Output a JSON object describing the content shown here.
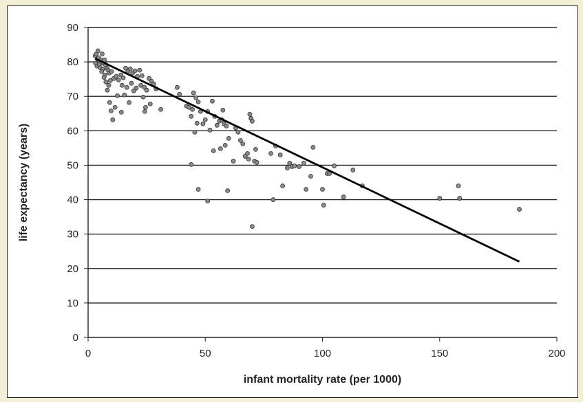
{
  "chart_data": {
    "type": "scatter",
    "title": "",
    "xlabel": "infant mortality rate (per 1000)",
    "ylabel": "life expectancy (years)",
    "xlim": [
      0,
      200
    ],
    "ylim": [
      0,
      90
    ],
    "x_ticks": [
      "0",
      "50",
      "100",
      "150",
      "200"
    ],
    "y_ticks": [
      "0",
      "10",
      "20",
      "30",
      "40",
      "50",
      "60",
      "70",
      "80",
      "90"
    ],
    "grid": "horizontal",
    "legend": "none",
    "trendline": {
      "x": [
        3,
        184
      ],
      "y": [
        81,
        22
      ]
    },
    "series": [
      {
        "values": [
          [
            3,
            81.8
          ],
          [
            3.5,
            82.3
          ],
          [
            4,
            80.8
          ],
          [
            3.2,
            79.6
          ],
          [
            4.5,
            81.2
          ],
          [
            5,
            80.2
          ],
          [
            5.5,
            80.6
          ],
          [
            4.2,
            83.2
          ],
          [
            6,
            82.3
          ],
          [
            3.8,
            78.8
          ],
          [
            4.8,
            79.2
          ],
          [
            5.2,
            78.3
          ],
          [
            6.5,
            79.6
          ],
          [
            7,
            80.6
          ],
          [
            6.2,
            77.8
          ],
          [
            5.8,
            77.2
          ],
          [
            7.5,
            79.0
          ],
          [
            8,
            78.2
          ],
          [
            8.5,
            77.6
          ],
          [
            7.2,
            76.2
          ],
          [
            9,
            76.8
          ],
          [
            6.8,
            75.5
          ],
          [
            10,
            77.2
          ],
          [
            9.5,
            74.6
          ],
          [
            8.8,
            73.2
          ],
          [
            8.2,
            71.8
          ],
          [
            7.6,
            74.2
          ],
          [
            11,
            75.2
          ],
          [
            12,
            75.8
          ],
          [
            13,
            74.8
          ],
          [
            14,
            76.2
          ],
          [
            15,
            75.4
          ],
          [
            16,
            78.2
          ],
          [
            17,
            77.2
          ],
          [
            18,
            78.0
          ],
          [
            19,
            76.8
          ],
          [
            20,
            77.4
          ],
          [
            21,
            75.8
          ],
          [
            22,
            77.6
          ],
          [
            23,
            76.0
          ],
          [
            14.5,
            73.2
          ],
          [
            16.5,
            72.6
          ],
          [
            18.5,
            73.8
          ],
          [
            20.5,
            72.4
          ],
          [
            22.5,
            73.2
          ],
          [
            24,
            72.6
          ],
          [
            25,
            71.8
          ],
          [
            26,
            75.2
          ],
          [
            27,
            74.4
          ],
          [
            28,
            73.6
          ],
          [
            29,
            72.2
          ],
          [
            12.5,
            70.2
          ],
          [
            15.5,
            70.4
          ],
          [
            17.5,
            68.2
          ],
          [
            19.5,
            71.6
          ],
          [
            23.5,
            69.8
          ],
          [
            24.5,
            66.8
          ],
          [
            26.5,
            67.8
          ],
          [
            24.2,
            65.6
          ],
          [
            31,
            66.2
          ],
          [
            9.2,
            68.2
          ],
          [
            9.8,
            65.8
          ],
          [
            10.5,
            63.2
          ],
          [
            14.2,
            65.4
          ],
          [
            11.5,
            66.8
          ],
          [
            38,
            72.6
          ],
          [
            39,
            70.6
          ],
          [
            42,
            67.2
          ],
          [
            43,
            66.8
          ],
          [
            44.5,
            66.2
          ],
          [
            45,
            71.0
          ],
          [
            46,
            69.6
          ],
          [
            47,
            68.4
          ],
          [
            48,
            65.6
          ],
          [
            44,
            64.2
          ],
          [
            46.5,
            62.2
          ],
          [
            50,
            63.2
          ],
          [
            51,
            65.6
          ],
          [
            53,
            68.6
          ],
          [
            54,
            64.2
          ],
          [
            49,
            62.0
          ],
          [
            52,
            60.2
          ],
          [
            45.5,
            59.6
          ],
          [
            55,
            61.6
          ],
          [
            56,
            62.8
          ],
          [
            57,
            63.2
          ],
          [
            58,
            62.0
          ],
          [
            57.5,
            66.0
          ],
          [
            59,
            61.4
          ],
          [
            60,
            57.8
          ],
          [
            58.5,
            55.8
          ],
          [
            56.5,
            54.8
          ],
          [
            53.5,
            54.2
          ],
          [
            62,
            51.2
          ],
          [
            63,
            60.8
          ],
          [
            64,
            59.6
          ],
          [
            65,
            57.2
          ],
          [
            66,
            56.2
          ],
          [
            67,
            52.6
          ],
          [
            68,
            53.4
          ],
          [
            68.5,
            51.8
          ],
          [
            69,
            64.8
          ],
          [
            69.5,
            63.6
          ],
          [
            70,
            62.8
          ],
          [
            71,
            51.2
          ],
          [
            72,
            50.8
          ],
          [
            71.5,
            54.6
          ],
          [
            44,
            50.2
          ],
          [
            47,
            43.0
          ],
          [
            51,
            39.6
          ],
          [
            59.5,
            42.6
          ],
          [
            70,
            32.2
          ],
          [
            78,
            53.4
          ],
          [
            80,
            55.6
          ],
          [
            82,
            53.0
          ],
          [
            79,
            40.0
          ],
          [
            83,
            44.0
          ],
          [
            85,
            49.2
          ],
          [
            86,
            50.6
          ],
          [
            87,
            49.6
          ],
          [
            88,
            49.8
          ],
          [
            90,
            49.6
          ],
          [
            92,
            50.6
          ],
          [
            93,
            43.0
          ],
          [
            95,
            46.8
          ],
          [
            96,
            55.2
          ],
          [
            100,
            43.0
          ],
          [
            102,
            47.6
          ],
          [
            103,
            47.6
          ],
          [
            105,
            49.8
          ],
          [
            100.5,
            38.4
          ],
          [
            109,
            40.8
          ],
          [
            113,
            48.6
          ],
          [
            117,
            44.0
          ],
          [
            150,
            40.4
          ],
          [
            158,
            44.0
          ],
          [
            158.5,
            40.4
          ],
          [
            184,
            37.2
          ]
        ]
      }
    ]
  }
}
